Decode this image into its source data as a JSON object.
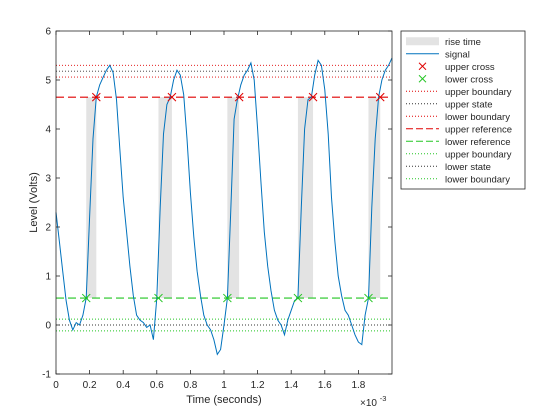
{
  "chart_data": {
    "type": "line",
    "xlabel": "Time (seconds)",
    "ylabel": "Level (Volts)",
    "x_exponent_label": "×10",
    "x_exponent_power": "-3",
    "xlim": [
      0,
      2.0
    ],
    "ylim": [
      -1,
      6
    ],
    "x_scale": 0.001,
    "xticks": [
      0,
      0.2,
      0.4,
      0.6,
      0.8,
      1,
      1.2,
      1.4,
      1.6,
      1.8
    ],
    "yticks": [
      -1,
      0,
      1,
      2,
      3,
      4,
      5,
      6
    ],
    "grid": false,
    "legend_position": "outside-right-top",
    "colors": {
      "signal": "#0072BD",
      "upper": "#E00000",
      "lower": "#22C522",
      "state_dots": "#333333",
      "rise_patch": "#E3E3E3"
    },
    "legend": [
      "rise time",
      "signal",
      "upper cross",
      "lower cross",
      "upper boundary",
      "upper state",
      "lower boundary",
      "upper reference",
      "lower reference",
      "upper boundary",
      "lower state",
      "lower boundary"
    ],
    "levels": {
      "upper_state": 5.18,
      "upper_boundary_high": 5.3,
      "upper_boundary_low": 5.06,
      "upper_reference": 4.65,
      "lower_reference": 0.55,
      "lower_state": 0.0,
      "lower_boundary_high": 0.12,
      "lower_boundary_low": -0.12
    },
    "rise_intervals": [
      [
        0.18,
        0.24
      ],
      [
        0.61,
        0.69
      ],
      [
        1.02,
        1.09
      ],
      [
        1.44,
        1.53
      ],
      [
        1.86,
        1.93
      ]
    ],
    "upper_cross": [
      {
        "x": 0.24,
        "y": 4.65
      },
      {
        "x": 0.69,
        "y": 4.65
      },
      {
        "x": 1.09,
        "y": 4.65
      },
      {
        "x": 1.53,
        "y": 4.65
      },
      {
        "x": 1.93,
        "y": 4.65
      }
    ],
    "lower_cross": [
      {
        "x": 0.18,
        "y": 0.55
      },
      {
        "x": 0.61,
        "y": 0.55
      },
      {
        "x": 1.02,
        "y": 0.55
      },
      {
        "x": 1.44,
        "y": 0.55
      },
      {
        "x": 1.86,
        "y": 0.55
      }
    ],
    "signal": {
      "x": [
        0.0,
        0.02,
        0.04,
        0.06,
        0.08,
        0.1,
        0.12,
        0.14,
        0.16,
        0.18,
        0.2,
        0.22,
        0.24,
        0.26,
        0.28,
        0.3,
        0.32,
        0.34,
        0.36,
        0.38,
        0.4,
        0.42,
        0.44,
        0.46,
        0.48,
        0.5,
        0.52,
        0.54,
        0.56,
        0.58,
        0.6,
        0.62,
        0.64,
        0.66,
        0.68,
        0.7,
        0.72,
        0.74,
        0.76,
        0.78,
        0.8,
        0.82,
        0.84,
        0.86,
        0.88,
        0.9,
        0.92,
        0.94,
        0.96,
        0.98,
        1.0,
        1.02,
        1.04,
        1.06,
        1.08,
        1.1,
        1.12,
        1.14,
        1.16,
        1.18,
        1.2,
        1.22,
        1.24,
        1.26,
        1.28,
        1.3,
        1.32,
        1.34,
        1.36,
        1.38,
        1.4,
        1.42,
        1.44,
        1.46,
        1.48,
        1.5,
        1.52,
        1.54,
        1.56,
        1.58,
        1.6,
        1.62,
        1.64,
        1.66,
        1.68,
        1.7,
        1.72,
        1.74,
        1.76,
        1.78,
        1.8,
        1.82,
        1.84,
        1.86,
        1.88,
        1.9,
        1.92,
        1.94,
        1.96,
        1.98,
        2.0
      ],
      "y": [
        2.3,
        1.7,
        1.1,
        0.5,
        0.1,
        -0.1,
        0.05,
        0.0,
        0.2,
        0.55,
        2.2,
        3.8,
        4.65,
        4.9,
        5.05,
        5.2,
        5.3,
        5.15,
        4.6,
        3.6,
        2.6,
        1.9,
        1.2,
        0.6,
        0.2,
        0.1,
        0.05,
        -0.05,
        0.0,
        -0.3,
        0.55,
        2.4,
        3.9,
        4.5,
        4.65,
        5.0,
        5.2,
        5.1,
        4.7,
        3.8,
        2.7,
        1.8,
        1.1,
        0.6,
        0.2,
        0.0,
        -0.1,
        -0.3,
        -0.6,
        -0.5,
        0.0,
        0.55,
        2.3,
        4.2,
        4.6,
        4.9,
        5.1,
        5.2,
        5.35,
        5.0,
        4.0,
        2.9,
        1.9,
        1.2,
        0.7,
        0.3,
        0.1,
        0.0,
        -0.2,
        0.1,
        0.3,
        0.5,
        0.55,
        2.4,
        4.0,
        4.6,
        4.65,
        5.1,
        5.4,
        5.3,
        4.8,
        3.9,
        2.6,
        1.7,
        1.0,
        0.6,
        0.3,
        0.2,
        0.0,
        -0.2,
        -0.35,
        -0.4,
        0.2,
        0.55,
        2.4,
        3.8,
        4.65,
        5.0,
        5.2,
        5.3,
        5.45
      ]
    }
  }
}
